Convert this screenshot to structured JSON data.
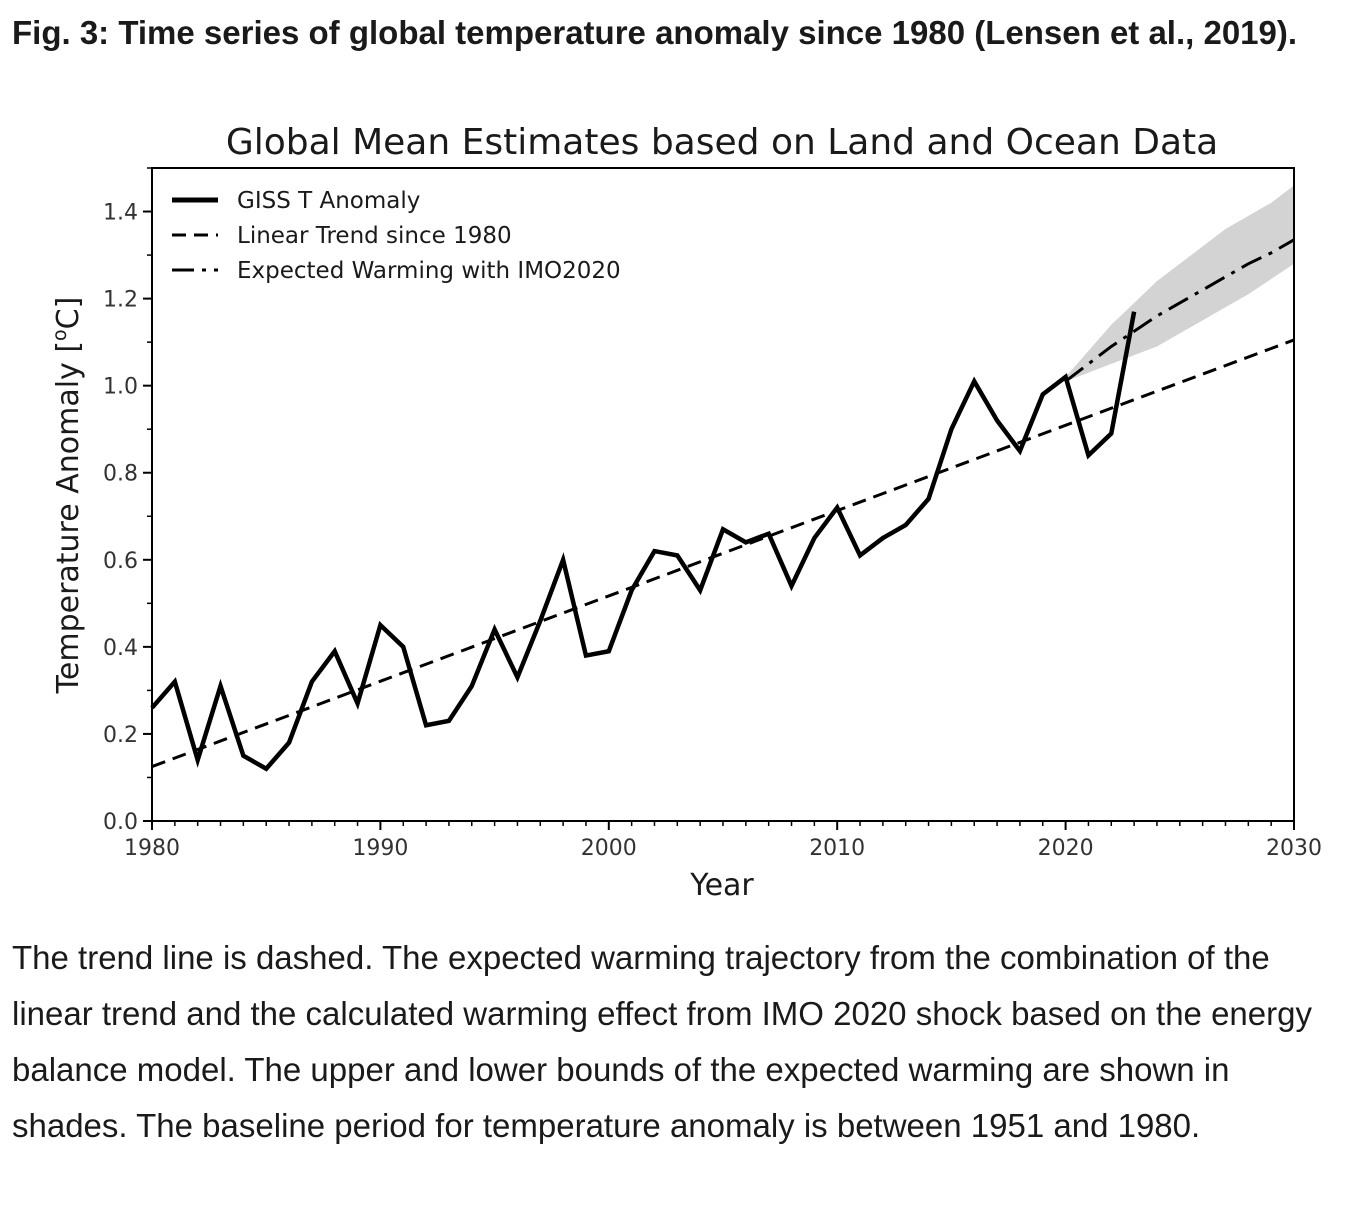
{
  "figure": {
    "title": "Fig. 3: Time series of global temperature anomaly since 1980 (Lensen et al., 2019).",
    "caption": "The trend line is dashed. The expected warming trajectory from the combination of the linear trend and the calculated warming effect from IMO 2020 shock based on the energy balance model. The upper and lower bounds of the expected warming are shown in shades. The baseline period for temperature anomaly is between 1951 and 1980."
  },
  "chart_data": {
    "type": "line",
    "title": "Global Mean Estimates based on Land and Ocean Data",
    "xlabel": "Year",
    "ylabel": "Temperature Anomaly [",
    "ylabel_sup": "o",
    "ylabel_end": "C]",
    "xlim": [
      1980,
      2030
    ],
    "ylim": [
      0.0,
      1.5
    ],
    "xticks": [
      1980,
      1990,
      2000,
      2010,
      2020,
      2030
    ],
    "yticks": [
      0.0,
      0.2,
      0.4,
      0.6,
      0.8,
      1.0,
      1.2,
      1.4
    ],
    "ytick_labels": [
      "0.0",
      "0.2",
      "0.4",
      "0.6",
      "0.8",
      "1.0",
      "1.2",
      "1.4"
    ],
    "grid": false,
    "legend_position": "top-left",
    "series": [
      {
        "name": "GISS T Anomaly",
        "style": "solid",
        "color": "#000000",
        "x": [
          1980,
          1981,
          1982,
          1983,
          1984,
          1985,
          1986,
          1987,
          1988,
          1989,
          1990,
          1991,
          1992,
          1993,
          1994,
          1995,
          1996,
          1997,
          1998,
          1999,
          2000,
          2001,
          2002,
          2003,
          2004,
          2005,
          2006,
          2007,
          2008,
          2009,
          2010,
          2011,
          2012,
          2013,
          2014,
          2015,
          2016,
          2017,
          2018,
          2019,
          2020,
          2021,
          2022,
          2023
        ],
        "y": [
          0.26,
          0.32,
          0.14,
          0.31,
          0.15,
          0.12,
          0.18,
          0.32,
          0.39,
          0.27,
          0.45,
          0.4,
          0.22,
          0.23,
          0.31,
          0.44,
          0.33,
          0.46,
          0.6,
          0.38,
          0.39,
          0.53,
          0.62,
          0.61,
          0.53,
          0.67,
          0.64,
          0.66,
          0.54,
          0.65,
          0.72,
          0.61,
          0.65,
          0.68,
          0.74,
          0.9,
          1.01,
          0.92,
          0.85,
          0.98,
          1.02,
          0.84,
          0.89,
          1.17
        ]
      },
      {
        "name": "Linear Trend since 1980",
        "style": "dashed",
        "color": "#000000",
        "x": [
          1980,
          2030
        ],
        "y": [
          0.125,
          1.105
        ]
      },
      {
        "name": "Expected Warming with IMO2020",
        "style": "dashdot",
        "color": "#000000",
        "x": [
          2020,
          2021,
          2022,
          2023,
          2024,
          2025,
          2026,
          2027,
          2028,
          2029,
          2030
        ],
        "y": [
          1.01,
          1.05,
          1.09,
          1.125,
          1.16,
          1.19,
          1.22,
          1.25,
          1.28,
          1.305,
          1.335
        ]
      }
    ],
    "band": {
      "color": "#d3d3d3",
      "x": [
        2020,
        2021,
        2022,
        2023,
        2024,
        2025,
        2026,
        2027,
        2028,
        2029,
        2030
      ],
      "upper": [
        1.02,
        1.08,
        1.14,
        1.19,
        1.24,
        1.28,
        1.32,
        1.36,
        1.39,
        1.42,
        1.46
      ],
      "lower": [
        1.01,
        1.03,
        1.05,
        1.07,
        1.09,
        1.12,
        1.15,
        1.18,
        1.21,
        1.245,
        1.28
      ]
    }
  }
}
